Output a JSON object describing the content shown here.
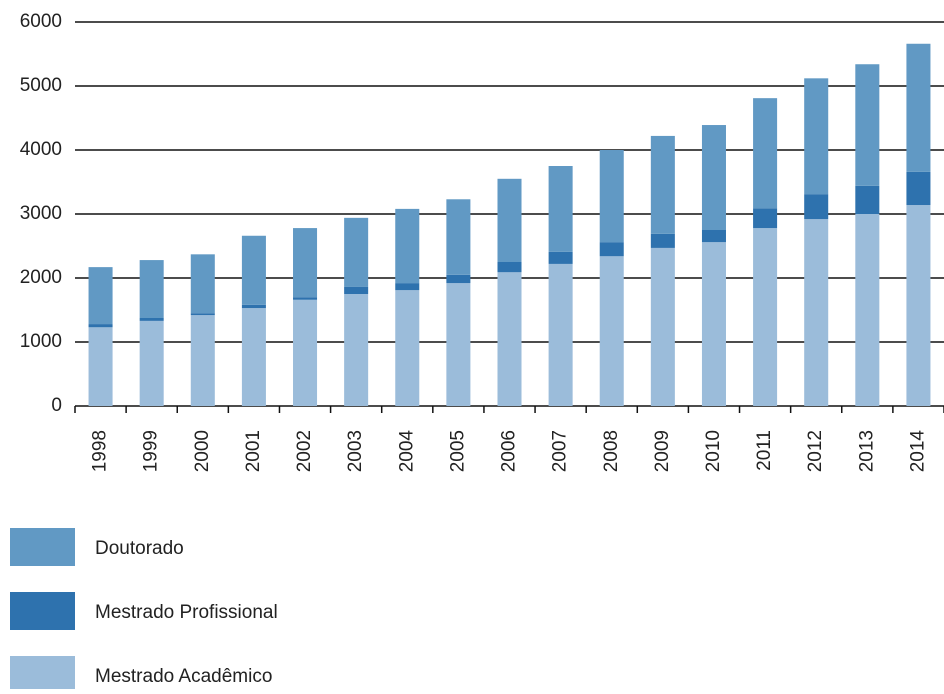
{
  "chart_data": {
    "type": "stacked_bar",
    "categories": [
      "1998",
      "1999",
      "2000",
      "2001",
      "2002",
      "2003",
      "2004",
      "2005",
      "2006",
      "2007",
      "2008",
      "2009",
      "2010",
      "2011",
      "2012",
      "2013",
      "2014"
    ],
    "series": [
      {
        "name": "Mestrado Acadêmico",
        "color": "#9bbcda",
        "values": [
          1230,
          1330,
          1420,
          1530,
          1660,
          1750,
          1810,
          1920,
          2090,
          2220,
          2340,
          2470,
          2560,
          2780,
          2920,
          3000,
          3140
        ]
      },
      {
        "name": "Mestrado Profissional",
        "color": "#2e72ae",
        "values": [
          50,
          45,
          30,
          50,
          40,
          110,
          110,
          130,
          160,
          190,
          220,
          220,
          190,
          310,
          390,
          440,
          520
        ]
      },
      {
        "name": "Doutorado",
        "color": "#6199c4",
        "values": [
          890,
          905,
          920,
          1080,
          1080,
          1080,
          1160,
          1180,
          1300,
          1340,
          1440,
          1530,
          1640,
          1720,
          1810,
          1900,
          2000
        ]
      }
    ],
    "ylim": [
      0,
      6000
    ],
    "yticks": [
      0,
      1000,
      2000,
      3000,
      4000,
      5000,
      6000
    ],
    "grid": true
  }
}
